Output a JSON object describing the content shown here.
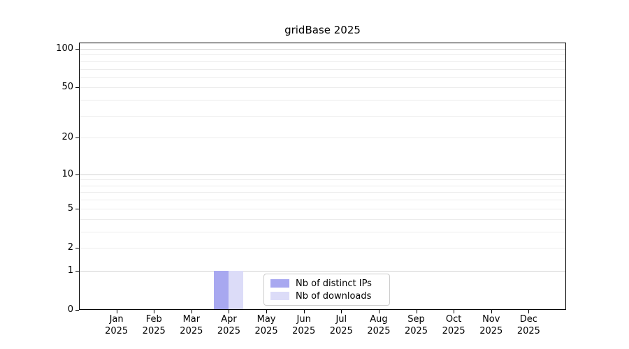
{
  "chart_data": {
    "type": "bar",
    "title": "gridBase 2025",
    "categories": [
      {
        "month": "Jan",
        "year": "2025"
      },
      {
        "month": "Feb",
        "year": "2025"
      },
      {
        "month": "Mar",
        "year": "2025"
      },
      {
        "month": "Apr",
        "year": "2025"
      },
      {
        "month": "May",
        "year": "2025"
      },
      {
        "month": "Jun",
        "year": "2025"
      },
      {
        "month": "Jul",
        "year": "2025"
      },
      {
        "month": "Aug",
        "year": "2025"
      },
      {
        "month": "Sep",
        "year": "2025"
      },
      {
        "month": "Oct",
        "year": "2025"
      },
      {
        "month": "Nov",
        "year": "2025"
      },
      {
        "month": "Dec",
        "year": "2025"
      }
    ],
    "series": [
      {
        "name": "Nb of distinct IPs",
        "color": "#a8a8f0",
        "values": [
          0,
          0,
          0,
          1,
          0,
          0,
          0,
          0,
          0,
          0,
          0,
          0
        ]
      },
      {
        "name": "Nb of downloads",
        "color": "#dcdcf8",
        "values": [
          0,
          0,
          0,
          1,
          0,
          0,
          0,
          0,
          0,
          0,
          0,
          0
        ]
      }
    ],
    "y_axis": {
      "scale": "log10(1+v)",
      "min": 0,
      "max": 100,
      "tick_values": [
        0,
        1,
        2,
        5,
        10,
        20,
        50,
        100
      ],
      "major_gridlines": [
        1,
        10,
        100
      ],
      "minor_gridlines": [
        2,
        3,
        4,
        5,
        6,
        7,
        8,
        9,
        20,
        30,
        40,
        50,
        60,
        70,
        80,
        90
      ]
    },
    "legend": {
      "position": "lower-center-inside",
      "entries": [
        "Nb of distinct IPs",
        "Nb of downloads"
      ]
    },
    "grid": "on",
    "colors": {
      "major_gridline": "#d2d2d2",
      "minor_gridline": "#ececec",
      "axis": "#000000",
      "legend_border": "#cccccc",
      "background": "#ffffff"
    }
  }
}
